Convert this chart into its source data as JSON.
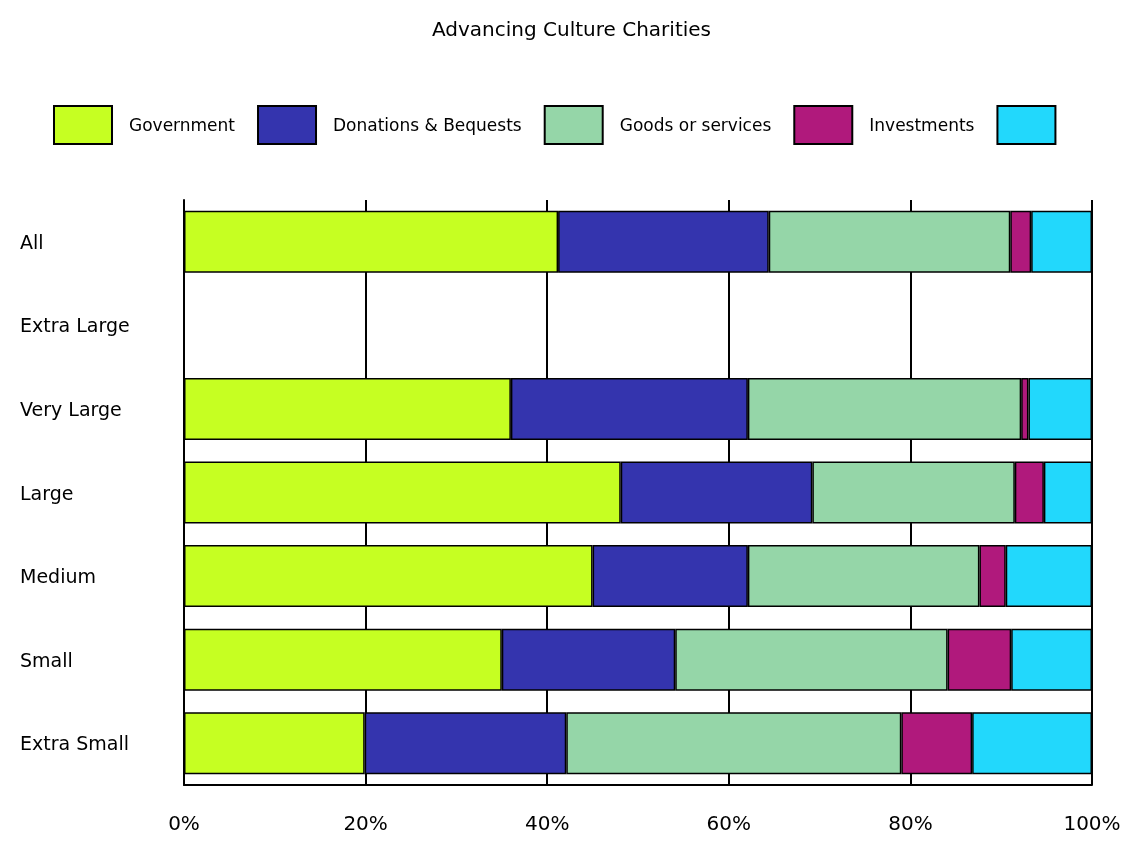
{
  "chart_data": {
    "type": "bar",
    "title": "Advancing Culture Charities",
    "orientation": "horizontal",
    "stacked": true,
    "categories": [
      "All",
      "Extra Large",
      "Very Large",
      "Large",
      "Medium",
      "Small",
      "Extra Small"
    ],
    "series": [
      {
        "name": "Government",
        "color": "#c6ff22",
        "values": [
          41.2,
          null,
          36.0,
          48.1,
          45.0,
          35.0,
          19.9
        ]
      },
      {
        "name": "Donations & Bequests",
        "color": "#3434ae",
        "values": [
          23.2,
          null,
          26.1,
          21.1,
          17.1,
          19.1,
          22.2
        ]
      },
      {
        "name": "Goods or services",
        "color": "#95d6a8",
        "values": [
          26.6,
          null,
          30.1,
          22.3,
          25.5,
          30.0,
          36.9
        ]
      },
      {
        "name": "Investments",
        "color": "#b0197c",
        "values": [
          2.3,
          null,
          0.8,
          3.2,
          2.9,
          7.0,
          7.8
        ]
      },
      {
        "name": null,
        "color": "#22d8fc",
        "values": [
          6.7,
          null,
          7.0,
          5.3,
          9.5,
          8.9,
          13.2
        ]
      }
    ],
    "xlim": [
      0,
      100
    ],
    "xticks": [
      {
        "value": 0,
        "label": "0%"
      },
      {
        "value": 20,
        "label": "20%"
      },
      {
        "value": 40,
        "label": "40%"
      },
      {
        "value": 60,
        "label": "60%"
      },
      {
        "value": 80,
        "label": "80%"
      },
      {
        "value": 100,
        "label": "100%"
      }
    ],
    "grid": "x",
    "legend": "top"
  }
}
